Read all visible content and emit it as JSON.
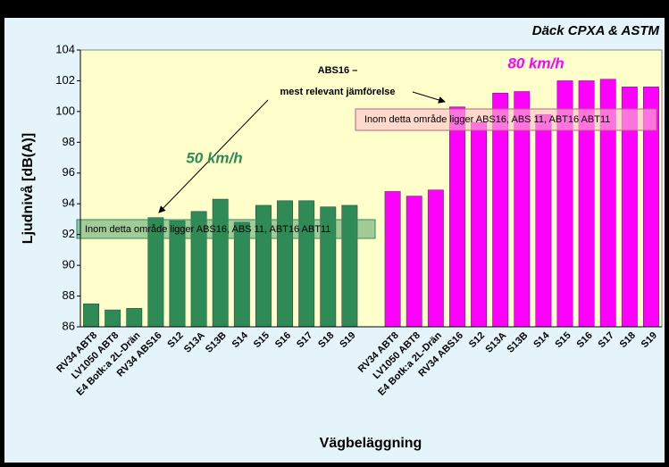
{
  "chart_data": {
    "type": "bar",
    "annotations": {
      "tires": "Däck CPXA & ASTM",
      "abs16_a": "ABS16 –",
      "abs16_b": "mest relevant jämförelse",
      "range_50": "Inom detta område ligger ABS16, ABS 11, ABT16 ABT11",
      "range_80": "Inom detta område ligger ABS16, ABS 11, ABT16 ABT11"
    },
    "xlabel": "Vägbeläggning",
    "ylabel": "Ljudnivå [dB(A)]",
    "categories": [
      "RV34 ABT8",
      "LV1050 ABT8",
      "E4 Botk:a 2L-Drän",
      "RV34 ABS16",
      "S12",
      "S13A",
      "S13B",
      "S14",
      "S15",
      "S16",
      "S17",
      "S18",
      "S19",
      null,
      "RV34 ABT8",
      "LV1050 ABT8",
      "E4 Botk:a 2L-Drän",
      "RV34 ABS16",
      "S12",
      "S13A",
      "S13B",
      "S14",
      "S15",
      "S16",
      "S17",
      "S18",
      "S19"
    ],
    "series": [
      {
        "name": "50 km/h",
        "color": "#2e8b57",
        "values": [
          87.5,
          87.1,
          87.2,
          93.1,
          92.9,
          93.5,
          94.3,
          92.8,
          93.9,
          94.2,
          94.2,
          93.8,
          93.9,
          null,
          null,
          null,
          null,
          null,
          null,
          null,
          null,
          null,
          null,
          null,
          null,
          null,
          null
        ]
      },
      {
        "name": "80 km/h",
        "color": "#ff00ff",
        "values": [
          null,
          null,
          null,
          null,
          null,
          null,
          null,
          null,
          null,
          null,
          null,
          null,
          null,
          null,
          94.8,
          94.5,
          94.9,
          100.3,
          99.3,
          101.2,
          101.3,
          99.8,
          102.0,
          102.0,
          102.1,
          101.6,
          101.6
        ]
      }
    ],
    "ylim": [
      86,
      104
    ],
    "yticks": [
      86,
      88,
      90,
      92,
      94,
      96,
      98,
      100,
      102,
      104
    ]
  }
}
